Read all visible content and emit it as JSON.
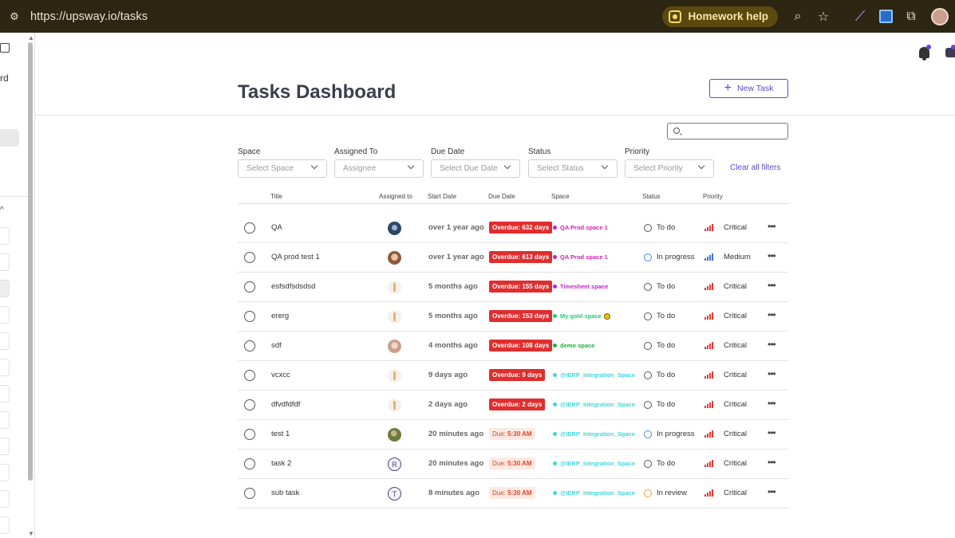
{
  "browser": {
    "url": "https://upsway.io/tasks",
    "homework_help": "Homework help"
  },
  "sidebar": {
    "partial_text": "rd"
  },
  "page": {
    "title": "Tasks Dashboard",
    "new_task_label": "New Task",
    "search_placeholder": ""
  },
  "filters": {
    "labels": [
      "Space",
      "Assigned To",
      "Due Date",
      "Status",
      "Priority"
    ],
    "placeholders": [
      "Select Space",
      "Assignee",
      "Select Due Date",
      "Select Status",
      "Select Priority"
    ],
    "clear_all": "Clear all filters"
  },
  "table": {
    "headers": [
      "Title",
      "Assigned to",
      "Start Date",
      "Due Date",
      "Space",
      "Status",
      "Priority"
    ],
    "rows": [
      {
        "title": "QA",
        "avatar": "avatar-blue",
        "start": "over 1 year ago",
        "due_prefix": "Overdue:",
        "due_value": "632 days",
        "due_type": "overdue",
        "space": "QA Prod space 1",
        "space_color": "#d21fb5",
        "status": "To do",
        "status_color": "#555555",
        "priority": "Critical",
        "priority_color": "#e53935"
      },
      {
        "title": "QA prod test 1",
        "avatar": "avatar-face",
        "start": "over 1 year ago",
        "due_prefix": "Overdue:",
        "due_value": "613 days",
        "due_type": "overdue",
        "space": "QA Prod space 1",
        "space_color": "#d21fb5",
        "status": "In progress",
        "status_color": "#3d8bd9",
        "priority": "Medium",
        "priority_color": "#3d6fd9"
      },
      {
        "title": "esfsdfsdsdsd",
        "avatar": "avatar-pin",
        "start": "5 months ago",
        "due_prefix": "Overdue:",
        "due_value": "155 days",
        "due_type": "overdue",
        "space": "Timesheet space",
        "space_color": "#c21fd0",
        "status": "To do",
        "status_color": "#555555",
        "priority": "Critical",
        "priority_color": "#e53935"
      },
      {
        "title": "ererg",
        "avatar": "avatar-pin",
        "start": "5 months ago",
        "due_prefix": "Overdue:",
        "due_value": "153 days",
        "due_type": "overdue",
        "space": "My gold space",
        "space_color": "#1fcf6e",
        "status": "To do",
        "status_color": "#555555",
        "priority": "Critical",
        "priority_color": "#e53935"
      },
      {
        "title": "sdf",
        "avatar": "avatar-girl",
        "start": "4 months ago",
        "due_prefix": "Overdue:",
        "due_value": "108 days",
        "due_type": "overdue",
        "space": "demo space",
        "space_color": "#1fae3f",
        "status": "To do",
        "status_color": "#555555",
        "priority": "Critical",
        "priority_color": "#e53935"
      },
      {
        "title": "vcxcc",
        "avatar": "avatar-pin",
        "start": "9 days ago",
        "due_prefix": "Overdue:",
        "due_value": "9 days",
        "due_type": "overdue",
        "space": "@IERP_Integration_Space",
        "space_color": "#3fd6e0",
        "status": "To do",
        "status_color": "#555555",
        "priority": "Critical",
        "priority_color": "#e53935"
      },
      {
        "title": "dfvdfdfdf",
        "avatar": "avatar-pin",
        "start": "2 days ago",
        "due_prefix": "Overdue:",
        "due_value": "2 days",
        "due_type": "overdue",
        "space": "@IERP_Integration_Space",
        "space_color": "#3fd6e0",
        "status": "To do",
        "status_color": "#555555",
        "priority": "Critical",
        "priority_color": "#e53935"
      },
      {
        "title": "test 1",
        "avatar": "avatar-nature",
        "start": "20 minutes ago",
        "due_prefix": "Due:",
        "due_value": "5:30 AM",
        "due_type": "today",
        "space": "@IERP_Integration_Space",
        "space_color": "#3fd6e0",
        "status": "In progress",
        "status_color": "#3d8bd9",
        "priority": "Critical",
        "priority_color": "#e53935"
      },
      {
        "title": "task 2",
        "avatar": "avatar-letter",
        "avatar_letter": "R",
        "start": "20 minutes ago",
        "due_prefix": "Due:",
        "due_value": "5:30 AM",
        "due_type": "today",
        "space": "@IERP_Integration_Space",
        "space_color": "#3fd6e0",
        "status": "To do",
        "status_color": "#555555",
        "priority": "Critical",
        "priority_color": "#e53935"
      },
      {
        "title": "sub task",
        "avatar": "avatar-letter",
        "avatar_letter": "T",
        "start": "8 minutes ago",
        "due_prefix": "Due:",
        "due_value": "5:30 AM",
        "due_type": "today",
        "space": "@IERP_Integration_Space",
        "space_color": "#3fd6e0",
        "status": "In review",
        "status_color": "#f0a33a",
        "priority": "Critical",
        "priority_color": "#e53935"
      }
    ]
  },
  "colors": {
    "accent": "#5b4bc9",
    "overdue": "#e02d2d",
    "chrome_bg": "#2c2613"
  }
}
